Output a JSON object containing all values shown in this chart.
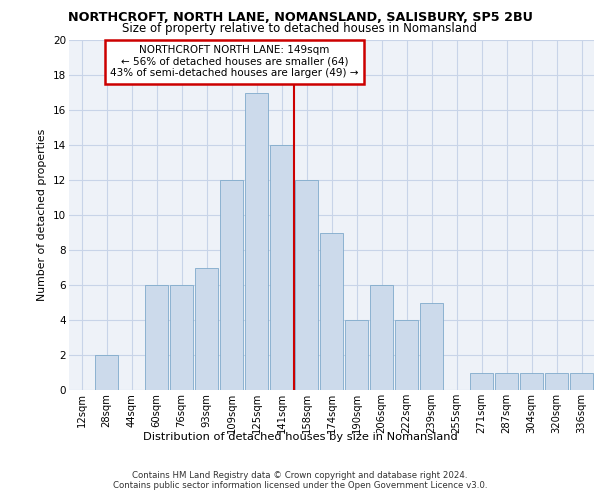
{
  "title": "NORTHCROFT, NORTH LANE, NOMANSLAND, SALISBURY, SP5 2BU",
  "subtitle": "Size of property relative to detached houses in Nomansland",
  "xlabel": "Distribution of detached houses by size in Nomansland",
  "ylabel": "Number of detached properties",
  "categories": [
    "12sqm",
    "28sqm",
    "44sqm",
    "60sqm",
    "76sqm",
    "93sqm",
    "109sqm",
    "125sqm",
    "141sqm",
    "158sqm",
    "174sqm",
    "190sqm",
    "206sqm",
    "222sqm",
    "239sqm",
    "255sqm",
    "271sqm",
    "287sqm",
    "304sqm",
    "320sqm",
    "336sqm"
  ],
  "values": [
    0,
    2,
    0,
    6,
    6,
    7,
    12,
    17,
    14,
    12,
    9,
    4,
    6,
    4,
    5,
    0,
    1,
    1,
    1,
    1,
    1
  ],
  "bar_color": "#ccdaeb",
  "bar_edge_color": "#7faacb",
  "vline_x": 8.5,
  "vline_color": "#cc0000",
  "annotation_text": "NORTHCROFT NORTH LANE: 149sqm\n← 56% of detached houses are smaller (64)\n43% of semi-detached houses are larger (49) →",
  "annotation_box_color": "#cc0000",
  "grid_color": "#c8d4e8",
  "background_color": "#eef2f8",
  "footer1": "Contains HM Land Registry data © Crown copyright and database right 2024.",
  "footer2": "Contains public sector information licensed under the Open Government Licence v3.0.",
  "ylim": [
    0,
    20
  ],
  "yticks": [
    0,
    2,
    4,
    6,
    8,
    10,
    12,
    14,
    16,
    18,
    20
  ]
}
